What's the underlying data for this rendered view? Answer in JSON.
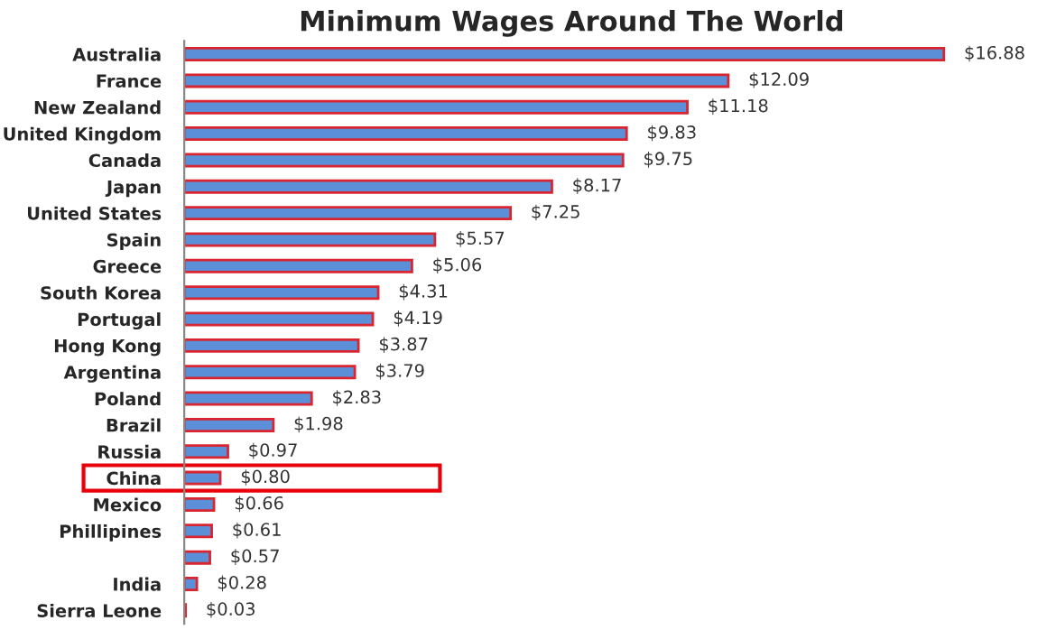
{
  "chart_data": {
    "type": "bar",
    "orientation": "horizontal",
    "title": "Minimum Wages Around The World",
    "categories": [
      "Australia",
      "France",
      "New Zealand",
      "United Kingdom",
      "Canada",
      "Japan",
      "United States",
      "Spain",
      "Greece",
      "South Korea",
      "Portugal",
      "Hong Kong",
      "Argentina",
      "Poland",
      "Brazil",
      "Russia",
      "China",
      "Mexico",
      "Phillipines",
      null,
      "India",
      "Sierra Leone"
    ],
    "values": [
      16.88,
      12.09,
      11.18,
      9.83,
      9.75,
      8.17,
      7.25,
      5.57,
      5.06,
      4.31,
      4.19,
      3.87,
      3.79,
      2.83,
      1.98,
      0.97,
      0.8,
      0.66,
      0.61,
      0.57,
      0.28,
      0.03
    ],
    "value_labels": [
      "$16.88",
      "$12.09",
      "$11.18",
      "$9.83",
      "$9.75",
      "$8.17",
      "$7.25",
      "$5.57",
      "$5.06",
      "$4.31",
      "$4.19",
      "$3.87",
      "$3.79",
      "$2.83",
      "$1.98",
      "$0.97",
      "$0.80",
      "$0.66",
      "$0.61",
      "$0.57",
      "$0.28",
      "$0.03"
    ],
    "color": "#5b8fd8"
  }
}
